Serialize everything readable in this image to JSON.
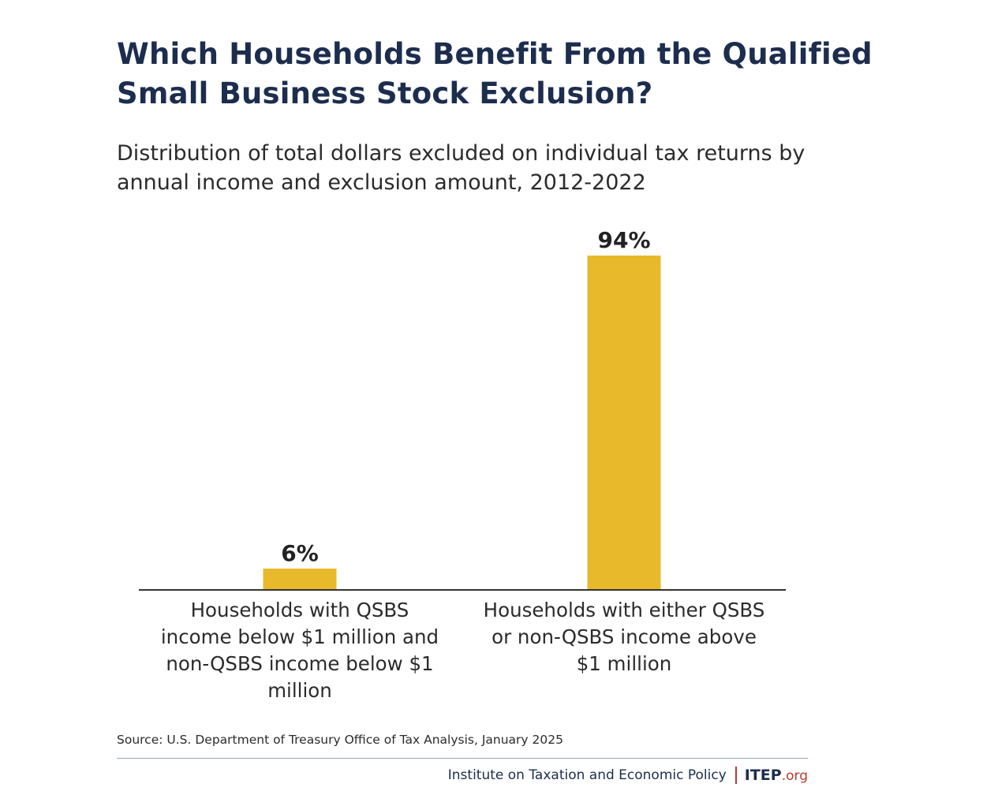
{
  "chart_data": {
    "type": "bar",
    "title": "Which Households Benefit From the Qualified Small Business Stock Exclusion?",
    "subtitle": "Distribution of total dollars excluded on individual tax returns by annual income and exclusion amount, 2012-2022",
    "categories": [
      "Households with QSBS income below $1 million and non-QSBS income below $1 million",
      "Households with either QSBS or non-QSBS income above $1 million"
    ],
    "values": [
      6,
      94
    ],
    "data_labels": [
      "6%",
      "94%"
    ],
    "xlabel": "",
    "ylabel": "",
    "ylim": [
      0,
      100
    ],
    "grid": false,
    "legend": "none",
    "bar_color": "#e8b92b",
    "source": "Source: U.S. Department of Treasury Office of Tax Analysis, January 2025"
  },
  "footer": {
    "organization": "Institute on Taxation and Economic Policy",
    "logo_main": "ITEP",
    "logo_suffix": ".org"
  },
  "colors": {
    "title": "#1c2d4e",
    "bar": "#e8b92b",
    "accent": "#c0392b"
  }
}
